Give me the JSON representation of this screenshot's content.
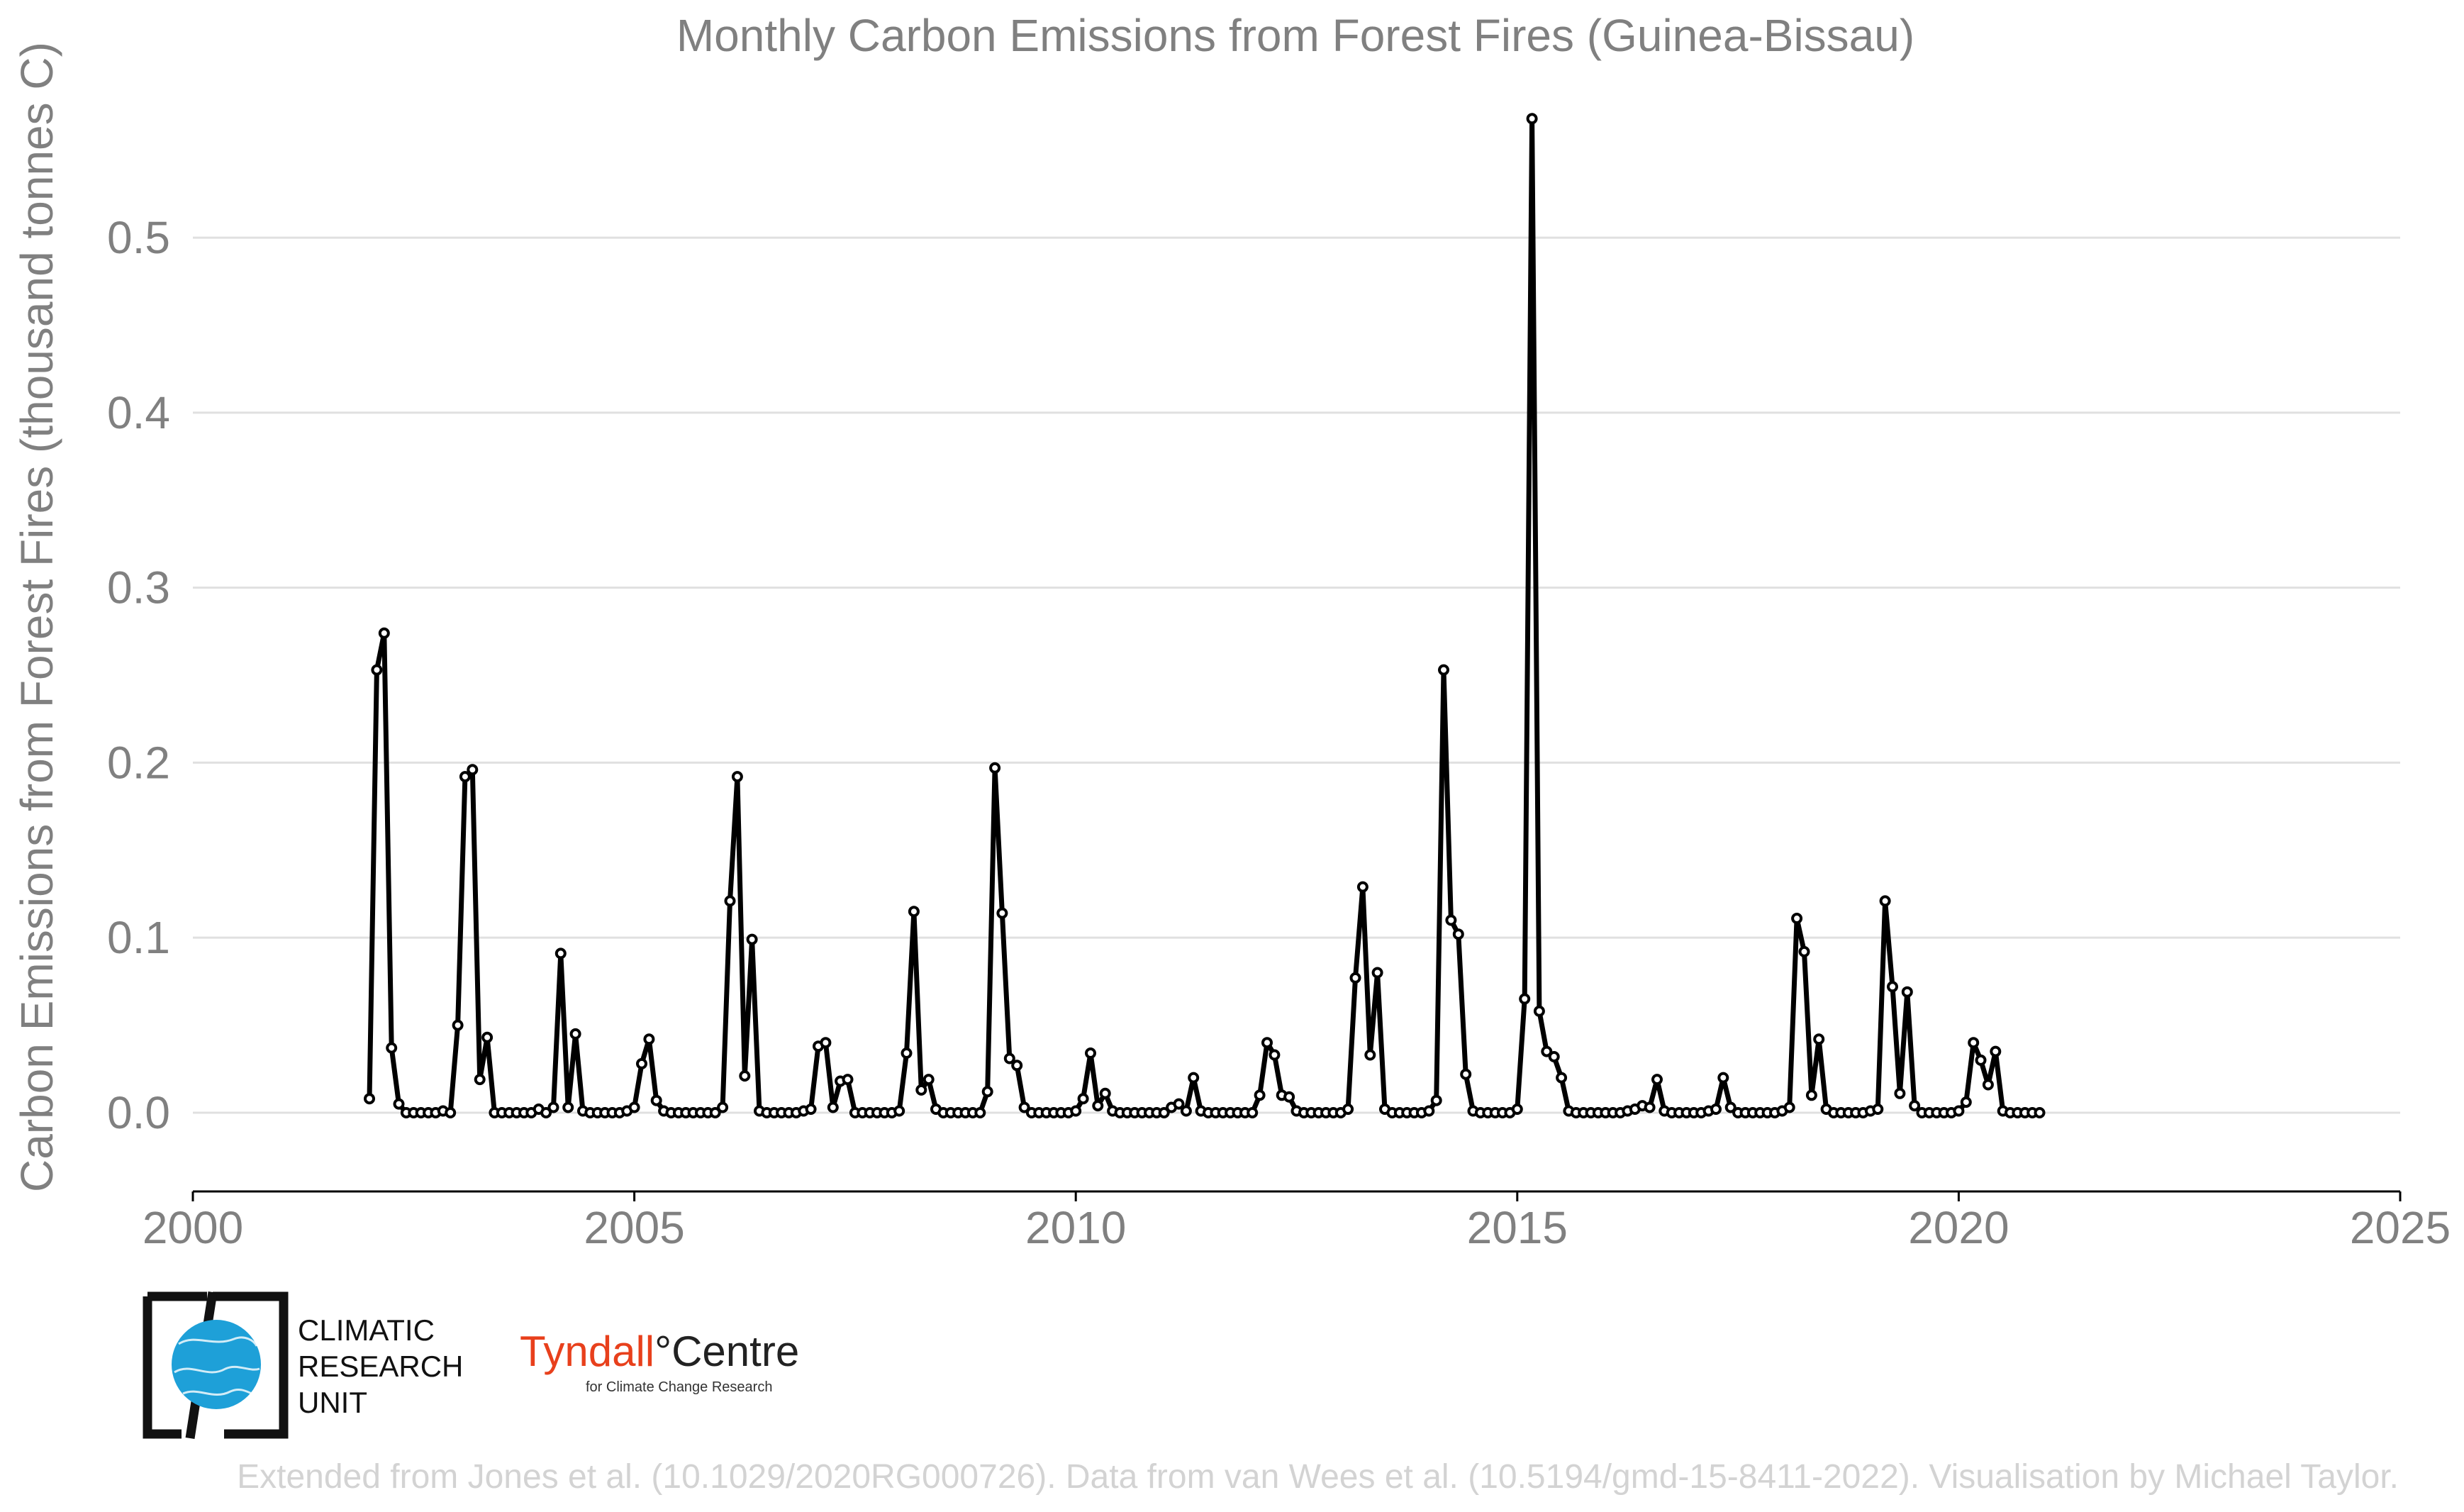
{
  "chart_data": {
    "type": "line",
    "title": "Monthly Carbon Emissions from Forest Fires (Guinea-Bissau)",
    "xlabel": "",
    "ylabel": "Carbon Emissions from Forest Fires (thousand tonnes C)",
    "xlim": [
      2000,
      2025
    ],
    "ylim": [
      -0.045,
      0.575
    ],
    "xticks": [
      2000,
      2005,
      2010,
      2015,
      2020,
      2025
    ],
    "yticks": [
      0.0,
      0.1,
      0.2,
      0.3,
      0.4,
      0.5
    ],
    "ytick_labels": [
      "0.0",
      "0.1",
      "0.2",
      "0.3",
      "0.4",
      "0.5"
    ],
    "grid": "horizontal",
    "start_year": 2002,
    "start_month": 1,
    "values": [
      0.008,
      0.253,
      0.274,
      0.037,
      0.005,
      0.0,
      0.0,
      0.0,
      0.0,
      0.0,
      0.001,
      0.0,
      0.05,
      0.192,
      0.196,
      0.019,
      0.043,
      0.0,
      0.0,
      0.0,
      0.0,
      0.0,
      0.0,
      0.002,
      0.0,
      0.003,
      0.091,
      0.003,
      0.045,
      0.001,
      0.0,
      0.0,
      0.0,
      0.0,
      0.0,
      0.001,
      0.003,
      0.028,
      0.042,
      0.007,
      0.001,
      0.0,
      0.0,
      0.0,
      0.0,
      0.0,
      0.0,
      0.0,
      0.003,
      0.121,
      0.192,
      0.021,
      0.099,
      0.001,
      0.0,
      0.0,
      0.0,
      0.0,
      0.0,
      0.001,
      0.002,
      0.038,
      0.04,
      0.003,
      0.018,
      0.019,
      0.0,
      0.0,
      0.0,
      0.0,
      0.0,
      0.0,
      0.001,
      0.034,
      0.115,
      0.013,
      0.019,
      0.002,
      0.0,
      0.0,
      0.0,
      0.0,
      0.0,
      0.0,
      0.012,
      0.197,
      0.114,
      0.031,
      0.027,
      0.003,
      0.0,
      0.0,
      0.0,
      0.0,
      0.0,
      0.0,
      0.001,
      0.008,
      0.034,
      0.004,
      0.011,
      0.001,
      0.0,
      0.0,
      0.0,
      0.0,
      0.0,
      0.0,
      0.0,
      0.003,
      0.005,
      0.001,
      0.02,
      0.001,
      0.0,
      0.0,
      0.0,
      0.0,
      0.0,
      0.0,
      0.0,
      0.01,
      0.04,
      0.033,
      0.01,
      0.009,
      0.001,
      0.0,
      0.0,
      0.0,
      0.0,
      0.0,
      0.0,
      0.002,
      0.077,
      0.129,
      0.033,
      0.08,
      0.002,
      0.0,
      0.0,
      0.0,
      0.0,
      0.0,
      0.001,
      0.007,
      0.253,
      0.11,
      0.102,
      0.022,
      0.001,
      0.0,
      0.0,
      0.0,
      0.0,
      0.0,
      0.002,
      0.065,
      0.568,
      0.058,
      0.035,
      0.032,
      0.02,
      0.001,
      0.0,
      0.0,
      0.0,
      0.0,
      0.0,
      0.0,
      0.0,
      0.001,
      0.002,
      0.004,
      0.003,
      0.019,
      0.001,
      0.0,
      0.0,
      0.0,
      0.0,
      0.0,
      0.001,
      0.002,
      0.02,
      0.003,
      0.0,
      0.0,
      0.0,
      0.0,
      0.0,
      0.0,
      0.001,
      0.003,
      0.111,
      0.092,
      0.01,
      0.042,
      0.002,
      0.0,
      0.0,
      0.0,
      0.0,
      0.0,
      0.001,
      0.002,
      0.121,
      0.072,
      0.011,
      0.069,
      0.004,
      0.0,
      0.0,
      0.0,
      0.0,
      0.0,
      0.001,
      0.006,
      0.04,
      0.03,
      0.016,
      0.035,
      0.001,
      0.0,
      0.0,
      0.0,
      0.0,
      0.0
    ]
  },
  "logos": {
    "cru_line1": "CLIMATIC",
    "cru_line2": "RESEARCH",
    "cru_line3": "UNIT",
    "tyndall_part1": "Tyndall",
    "tyndall_part2": "°Centre",
    "tyndall_sub": "for Climate Change Research"
  },
  "credits": "Extended from Jones et al. (10.1029/2020RG000726). Data from van Wees et al. (10.5194/gmd-15-8411-2022). Visualisation by Michael Taylor."
}
